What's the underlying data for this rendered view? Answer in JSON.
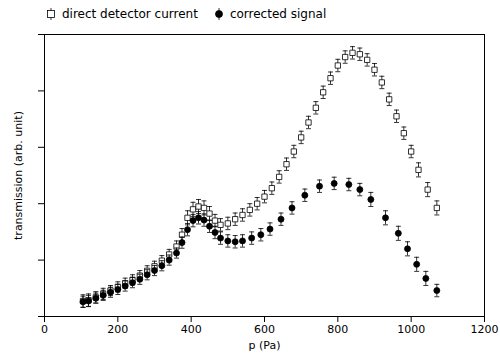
{
  "chart_data": {
    "type": "scatter",
    "xlabel": "p (Pa)",
    "ylabel": "transmission (arb. unit)",
    "xlim": [
      0,
      1200
    ],
    "xticks": [
      0,
      200,
      400,
      600,
      800,
      1000,
      1200
    ],
    "ylim": [
      0,
      1
    ],
    "yticks": [
      0,
      0.2,
      0.4,
      0.6,
      0.8,
      1
    ],
    "tick_labels": "x",
    "grid": false,
    "legend": "upper left",
    "series": [
      {
        "name": "direct detector current",
        "marker": "square-open",
        "color": "black",
        "x": [
          105,
          120,
          140,
          160,
          180,
          200,
          220,
          240,
          260,
          280,
          300,
          320,
          340,
          360,
          375,
          390,
          405,
          420,
          435,
          450,
          465,
          480,
          500,
          520,
          540,
          560,
          580,
          600,
          620,
          640,
          660,
          680,
          700,
          720,
          740,
          760,
          780,
          800,
          820,
          840,
          860,
          880,
          900,
          920,
          940,
          960,
          980,
          1000,
          1020,
          1045,
          1070
        ],
        "values": [
          0.055,
          0.058,
          0.068,
          0.08,
          0.092,
          0.105,
          0.118,
          0.13,
          0.145,
          0.162,
          0.178,
          0.198,
          0.22,
          0.248,
          0.29,
          0.35,
          0.38,
          0.39,
          0.385,
          0.365,
          0.34,
          0.325,
          0.33,
          0.345,
          0.36,
          0.378,
          0.4,
          0.425,
          0.455,
          0.495,
          0.54,
          0.585,
          0.635,
          0.688,
          0.74,
          0.795,
          0.845,
          0.89,
          0.92,
          0.935,
          0.93,
          0.91,
          0.875,
          0.83,
          0.77,
          0.71,
          0.65,
          0.585,
          0.52,
          0.45,
          0.385
        ],
        "yerr": [
          0.022,
          0.022,
          0.02,
          0.02,
          0.018,
          0.018,
          0.018,
          0.018,
          0.018,
          0.018,
          0.018,
          0.018,
          0.018,
          0.02,
          0.022,
          0.025,
          0.025,
          0.025,
          0.025,
          0.025,
          0.022,
          0.022,
          0.022,
          0.022,
          0.022,
          0.022,
          0.022,
          0.022,
          0.022,
          0.022,
          0.022,
          0.022,
          0.022,
          0.022,
          0.022,
          0.022,
          0.022,
          0.022,
          0.022,
          0.022,
          0.022,
          0.022,
          0.022,
          0.022,
          0.022,
          0.022,
          0.022,
          0.022,
          0.025,
          0.025,
          0.025
        ]
      },
      {
        "name": "corrected signal",
        "marker": "circle",
        "color": "black",
        "x": [
          105,
          120,
          140,
          160,
          180,
          200,
          220,
          240,
          260,
          280,
          300,
          320,
          340,
          360,
          375,
          390,
          405,
          420,
          435,
          450,
          465,
          480,
          500,
          520,
          540,
          565,
          590,
          615,
          645,
          675,
          710,
          750,
          790,
          830,
          860,
          890,
          930,
          965,
          990,
          1015,
          1040,
          1070
        ],
        "values": [
          0.052,
          0.055,
          0.065,
          0.075,
          0.086,
          0.096,
          0.108,
          0.12,
          0.132,
          0.148,
          0.163,
          0.18,
          0.2,
          0.225,
          0.262,
          0.308,
          0.34,
          0.35,
          0.342,
          0.32,
          0.298,
          0.278,
          0.268,
          0.265,
          0.268,
          0.278,
          0.29,
          0.31,
          0.345,
          0.385,
          0.43,
          0.462,
          0.472,
          0.468,
          0.45,
          0.415,
          0.35,
          0.295,
          0.24,
          0.185,
          0.135,
          0.092
        ],
        "yerr": [
          0.02,
          0.02,
          0.018,
          0.018,
          0.018,
          0.018,
          0.018,
          0.018,
          0.018,
          0.018,
          0.018,
          0.018,
          0.018,
          0.018,
          0.02,
          0.022,
          0.022,
          0.022,
          0.022,
          0.022,
          0.022,
          0.022,
          0.022,
          0.022,
          0.022,
          0.022,
          0.022,
          0.022,
          0.022,
          0.022,
          0.022,
          0.022,
          0.022,
          0.022,
          0.022,
          0.025,
          0.025,
          0.025,
          0.025,
          0.025,
          0.025,
          0.022
        ]
      }
    ]
  }
}
